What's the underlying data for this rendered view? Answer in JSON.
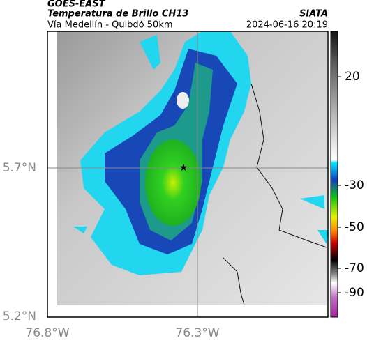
{
  "header": {
    "product": "GOES-EAST",
    "title": "Temperatura de Brillo CH13",
    "subtitle": "Vía Medellín - Quibdó 50km",
    "source": "SIATA",
    "datetime": "2024-06-16 20:19"
  },
  "map": {
    "lat_labels": [
      "5.7°N",
      "5.2°N"
    ],
    "lon_labels": [
      "76.8°W",
      "76.3°W"
    ]
  },
  "colorbar": {
    "ticks": [
      20,
      -30,
      -50,
      -70,
      -90
    ]
  }
}
